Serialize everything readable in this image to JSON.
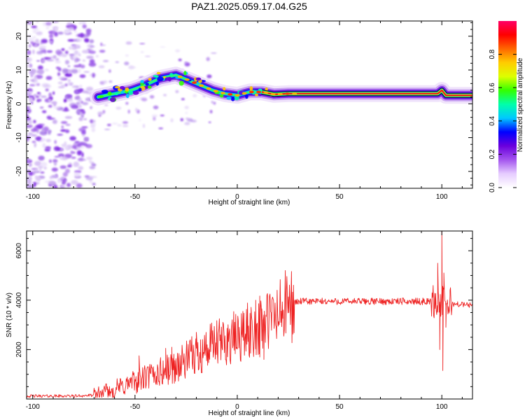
{
  "title": "PAZ1.2025.059.17.04.G25",
  "chart_data": [
    {
      "type": "heatmap",
      "xlabel": "Height of straight line (km)",
      "ylabel": "Frequency (Hz)",
      "xlim": [
        -103,
        115
      ],
      "ylim": [
        -25,
        24.5
      ],
      "xticks": [
        -100,
        -50,
        0,
        50,
        100
      ],
      "yticks": [
        -20,
        -10,
        0,
        10,
        20
      ],
      "colorbar": {
        "label": "Normalized spectral amplitude",
        "range": [
          0,
          1
        ],
        "ticks": [
          0.0,
          0.2,
          0.4,
          0.6,
          0.8
        ],
        "colors": [
          "#ffffff",
          "#e6ccff",
          "#a455ee",
          "#6a00dd",
          "#0000ff",
          "#00c8ff",
          "#00ffaa",
          "#33ff00",
          "#ddff00",
          "#ffcc00",
          "#ff6600",
          "#ff0000",
          "#ff0066"
        ]
      },
      "ridge": [
        {
          "x": -68,
          "y": 2.0
        },
        {
          "x": -60,
          "y": 3.0
        },
        {
          "x": -52,
          "y": 4.0
        },
        {
          "x": -45,
          "y": 5.5
        },
        {
          "x": -38,
          "y": 7.5
        },
        {
          "x": -30,
          "y": 8.5
        },
        {
          "x": -24,
          "y": 7.0
        },
        {
          "x": -18,
          "y": 5.5
        },
        {
          "x": -12,
          "y": 4.0
        },
        {
          "x": -6,
          "y": 3.0
        },
        {
          "x": 0,
          "y": 2.5
        },
        {
          "x": 6,
          "y": 3.5
        },
        {
          "x": 12,
          "y": 3.5
        },
        {
          "x": 18,
          "y": 2.8
        },
        {
          "x": 25,
          "y": 3.0
        },
        {
          "x": 35,
          "y": 3.0
        },
        {
          "x": 50,
          "y": 3.0
        },
        {
          "x": 90,
          "y": 3.0
        },
        {
          "x": 98,
          "y": 3.0
        },
        {
          "x": 100,
          "y": 4.0
        },
        {
          "x": 102,
          "y": 2.5
        },
        {
          "x": 115,
          "y": 2.5
        }
      ]
    },
    {
      "type": "line",
      "xlabel": "Height of straight line (km)",
      "ylabel": "SNR (10 * v/v)",
      "xlim": [
        -103,
        115
      ],
      "ylim": [
        0,
        6800
      ],
      "xticks": [
        -100,
        -50,
        0,
        50,
        100
      ],
      "yticks": [
        2000,
        4000,
        6000
      ],
      "color": "#ee2222",
      "trend": [
        {
          "x": -103,
          "y": 120
        },
        {
          "x": -80,
          "y": 120
        },
        {
          "x": -70,
          "y": 150
        },
        {
          "x": -65,
          "y": 250
        },
        {
          "x": -60,
          "y": 400
        },
        {
          "x": -50,
          "y": 700
        },
        {
          "x": -40,
          "y": 1000
        },
        {
          "x": -30,
          "y": 1300
        },
        {
          "x": -20,
          "y": 1800
        },
        {
          "x": -10,
          "y": 2200
        },
        {
          "x": 0,
          "y": 2500
        },
        {
          "x": 10,
          "y": 2900
        },
        {
          "x": 20,
          "y": 3400
        },
        {
          "x": 25,
          "y": 3800
        },
        {
          "x": 30,
          "y": 3950
        },
        {
          "x": 50,
          "y": 3950
        },
        {
          "x": 80,
          "y": 3950
        },
        {
          "x": 95,
          "y": 3950
        },
        {
          "x": 100,
          "y": 3900
        },
        {
          "x": 105,
          "y": 3850
        },
        {
          "x": 115,
          "y": 3800
        }
      ],
      "spikes": [
        {
          "x": -48,
          "y": 1750
        },
        {
          "x": -35,
          "y": 2050
        },
        {
          "x": -32,
          "y": 2100
        },
        {
          "x": -20,
          "y": 2700
        },
        {
          "x": -18,
          "y": 2400
        },
        {
          "x": 9,
          "y": 4000
        },
        {
          "x": 12,
          "y": 3650
        },
        {
          "x": 11,
          "y": 1700
        },
        {
          "x": 13,
          "y": 1600
        },
        {
          "x": 98,
          "y": 5500
        },
        {
          "x": 99,
          "y": 2000
        },
        {
          "x": 100,
          "y": 6800
        },
        {
          "x": 100.5,
          "y": 1150
        },
        {
          "x": 101,
          "y": 5100
        },
        {
          "x": 102,
          "y": 2900
        },
        {
          "x": 104,
          "y": 4400
        }
      ]
    }
  ]
}
